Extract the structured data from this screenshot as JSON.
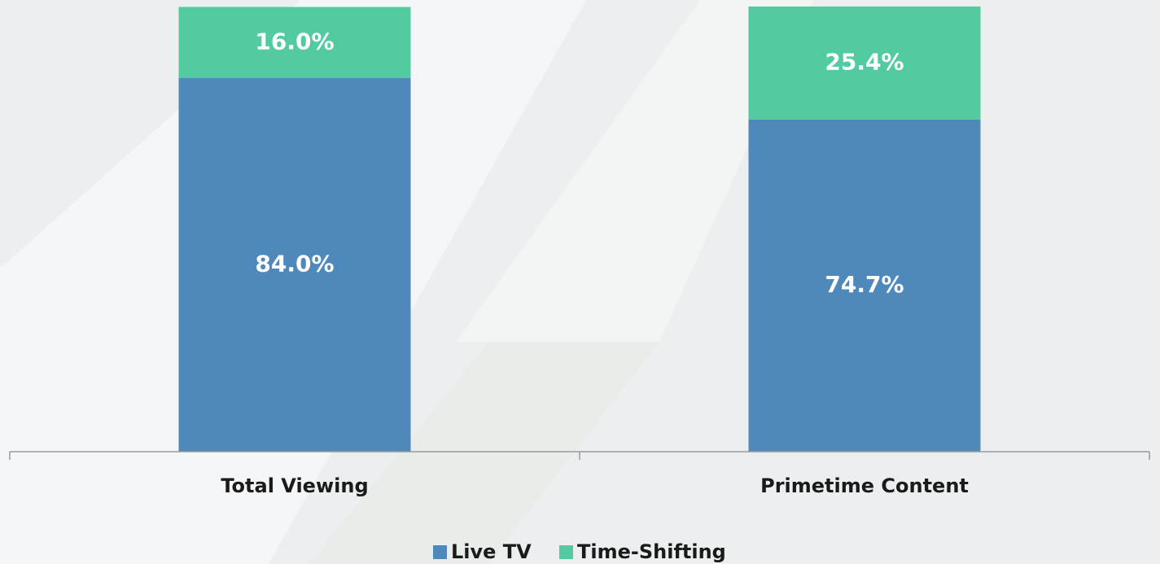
{
  "chart_data": {
    "type": "stacked_bar",
    "categories": [
      "Total Viewing",
      "Primetime Content"
    ],
    "series": [
      {
        "name": "Live TV",
        "color": "#4f88bb",
        "values": [
          84.0,
          74.7
        ],
        "value_labels": [
          "84.0%",
          "74.7%"
        ]
      },
      {
        "name": "Time-Shifting",
        "color": "#52cba0",
        "values": [
          16.0,
          25.4
        ],
        "value_labels": [
          "16.0%",
          "25.4%"
        ]
      }
    ],
    "ylim": [
      0,
      100.1
    ],
    "legend": "bottom"
  }
}
